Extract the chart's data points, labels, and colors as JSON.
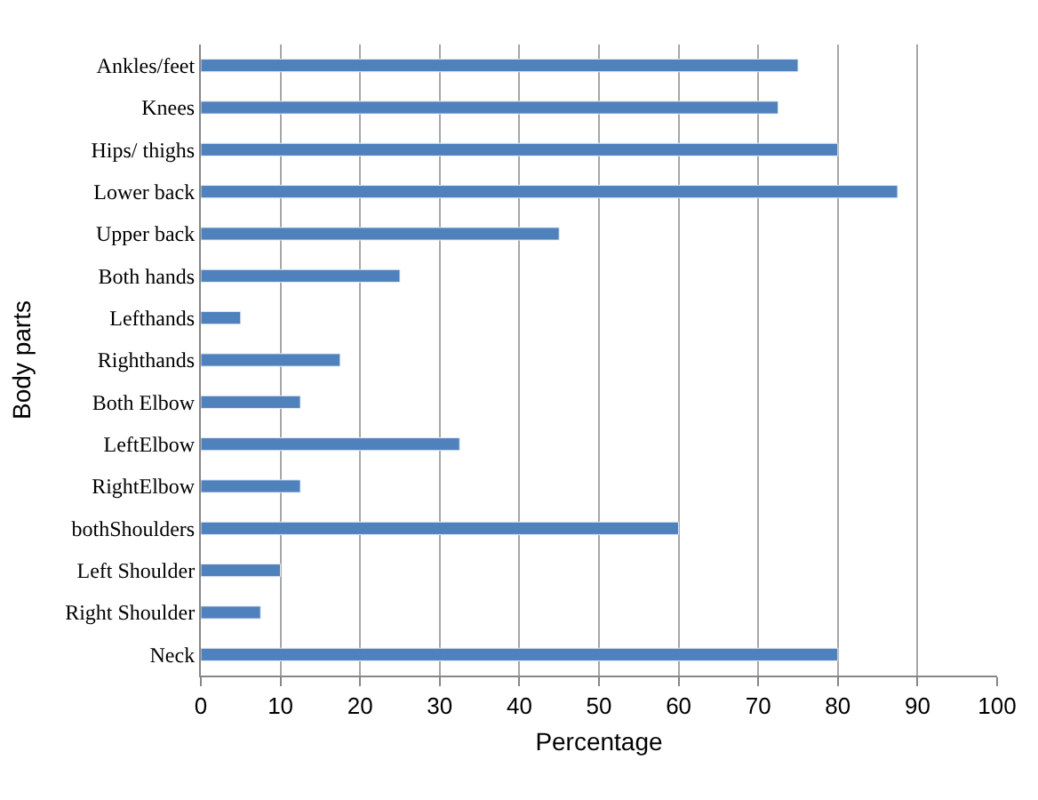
{
  "chart_data": {
    "type": "bar",
    "orientation": "horizontal",
    "xlabel": "Percentage",
    "ylabel": "Body parts",
    "categories": [
      "Ankles/feet",
      "Knees",
      "Hips/ thighs",
      "Lower back",
      "Upper back",
      "Both hands",
      "Lefthands",
      "Righthands",
      "Both Elbow",
      "LeftElbow",
      "RightElbow",
      "bothShoulders",
      "Left Shoulder",
      "Right Shoulder",
      "Neck"
    ],
    "values": [
      75,
      72.5,
      80,
      87.5,
      45,
      25,
      5,
      17.5,
      12.5,
      32.5,
      12.5,
      60,
      10,
      7.5,
      80
    ],
    "color": "#4f81bd",
    "xlim": [
      0,
      100
    ],
    "xticks": [
      0,
      10,
      20,
      30,
      40,
      50,
      60,
      70,
      80,
      90,
      100
    ],
    "grid": "x",
    "legend": false
  }
}
